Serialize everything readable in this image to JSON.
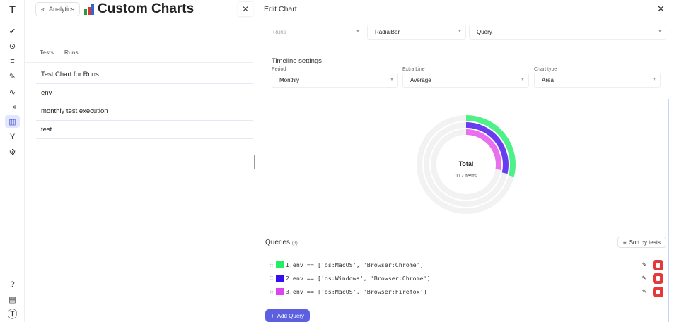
{
  "rail": {
    "icons": [
      "logo-icon",
      "check-icon",
      "play-circle-icon",
      "list-check-icon",
      "pen-icon",
      "pulse-icon",
      "import-icon",
      "analytics-icon",
      "branch-icon",
      "gear-icon",
      "help-icon",
      "book-icon",
      "profile-icon"
    ]
  },
  "left": {
    "back_label": "Analytics",
    "title": "Custom Charts",
    "tabs": [
      "Tests",
      "Runs"
    ],
    "charts": [
      "Test Chart for Runs",
      "env",
      "monthly test execution",
      "test"
    ]
  },
  "panel": {
    "title": "Edit Chart",
    "entity_select": "Runs",
    "chart_select": "RadialBar",
    "mode_select": "Query",
    "timeline_title": "Timeline settings",
    "period_label": "Period",
    "period_value": "Monthly",
    "extra_label": "Extra Line",
    "extra_value": "Average",
    "type_label": "Chart type",
    "type_value": "Area",
    "queries_title": "Queries",
    "queries_count": "(3)",
    "sort_label": "Sort by tests",
    "add_label": "Add Query",
    "queries": [
      {
        "text": "1.env == ['os:MacOS', 'Browser:Chrome']",
        "color": "#22ee66"
      },
      {
        "text": "2.env == ['os:Windows', 'Browser:Chrome']",
        "color": "#3311ee"
      },
      {
        "text": "3.env == ['os:MacOS', 'Browser:Firefox']",
        "color": "#dd44ee"
      }
    ]
  },
  "chart_data": {
    "type": "radialBar",
    "center_label": "Total",
    "center_value": "117 tests",
    "series": [
      {
        "color": "#4ef08a",
        "value": 29
      },
      {
        "color": "#6a3cf0",
        "value": 28.5
      },
      {
        "color": "#e870ec",
        "value": 27.5
      }
    ],
    "track_color": "#f2f2f2",
    "max": 100
  }
}
